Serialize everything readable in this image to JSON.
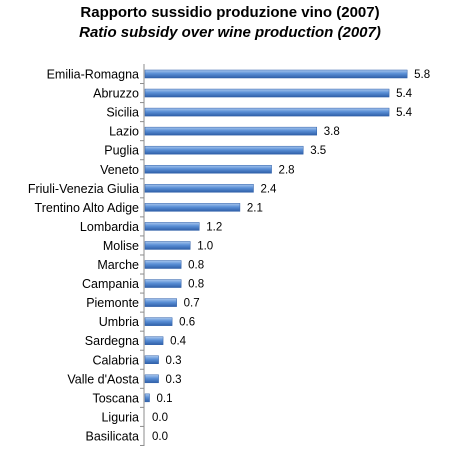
{
  "chart_data": {
    "type": "bar",
    "orientation": "horizontal",
    "title": "Rapporto sussidio produzione vino (2007)",
    "subtitle": "Ratio subsidy over wine production (2007)",
    "categories": [
      "Emilia-Romagna",
      "Abruzzo",
      "Sicilia",
      "Lazio",
      "Puglia",
      "Veneto",
      "Friuli-Venezia Giulia",
      "Trentino Alto Adige",
      "Lombardia",
      "Molise",
      "Marche",
      "Campania",
      "Piemonte",
      "Umbria",
      "Sardegna",
      "Calabria",
      "Valle d'Aosta",
      "Toscana",
      "Liguria",
      "Basilicata"
    ],
    "values": [
      5.8,
      5.4,
      5.4,
      3.8,
      3.5,
      2.8,
      2.4,
      2.1,
      1.2,
      1.0,
      0.8,
      0.8,
      0.7,
      0.6,
      0.4,
      0.3,
      0.3,
      0.1,
      0.0,
      0.0
    ],
    "value_labels": [
      "5.8",
      "5.4",
      "5.4",
      "3.8",
      "3.5",
      "2.8",
      "2.4",
      "2.1",
      "1.2",
      "1.0",
      "0.8",
      "0.8",
      "0.7",
      "0.6",
      "0.4",
      "0.3",
      "0.3",
      "0.1",
      "0.0",
      "0.0"
    ],
    "xlim": [
      0,
      6
    ],
    "grid": false,
    "legend": "none",
    "colors": {
      "bar_light": "#a9c7ee",
      "bar_mid": "#5a8fd6",
      "bar_dark": "#2f5fa8",
      "axis": "#8c8c8c"
    }
  }
}
